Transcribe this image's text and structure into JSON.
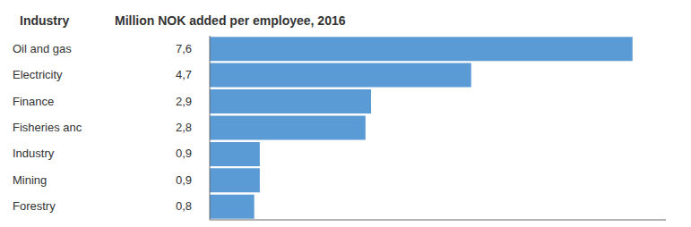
{
  "chart_data": {
    "type": "bar",
    "orientation": "horizontal",
    "y_label": "Industry",
    "x_label": "Million NOK added per employee, 2016",
    "categories": [
      "Oil and gas",
      "Electricity",
      "Finance",
      "Fisheries anc",
      "Industry",
      "Mining",
      "Forestry"
    ],
    "values": [
      7.6,
      4.7,
      2.9,
      2.8,
      0.9,
      0.9,
      0.8
    ],
    "value_labels": [
      "7,6",
      "4,7",
      "2,9",
      "2,8",
      "0,9",
      "0,9",
      "0,8"
    ],
    "data_labels": true,
    "color": "#5B9BD5",
    "xlim": [
      0,
      8.2
    ],
    "xticks": [],
    "grid": false,
    "tick_labels": "y"
  }
}
